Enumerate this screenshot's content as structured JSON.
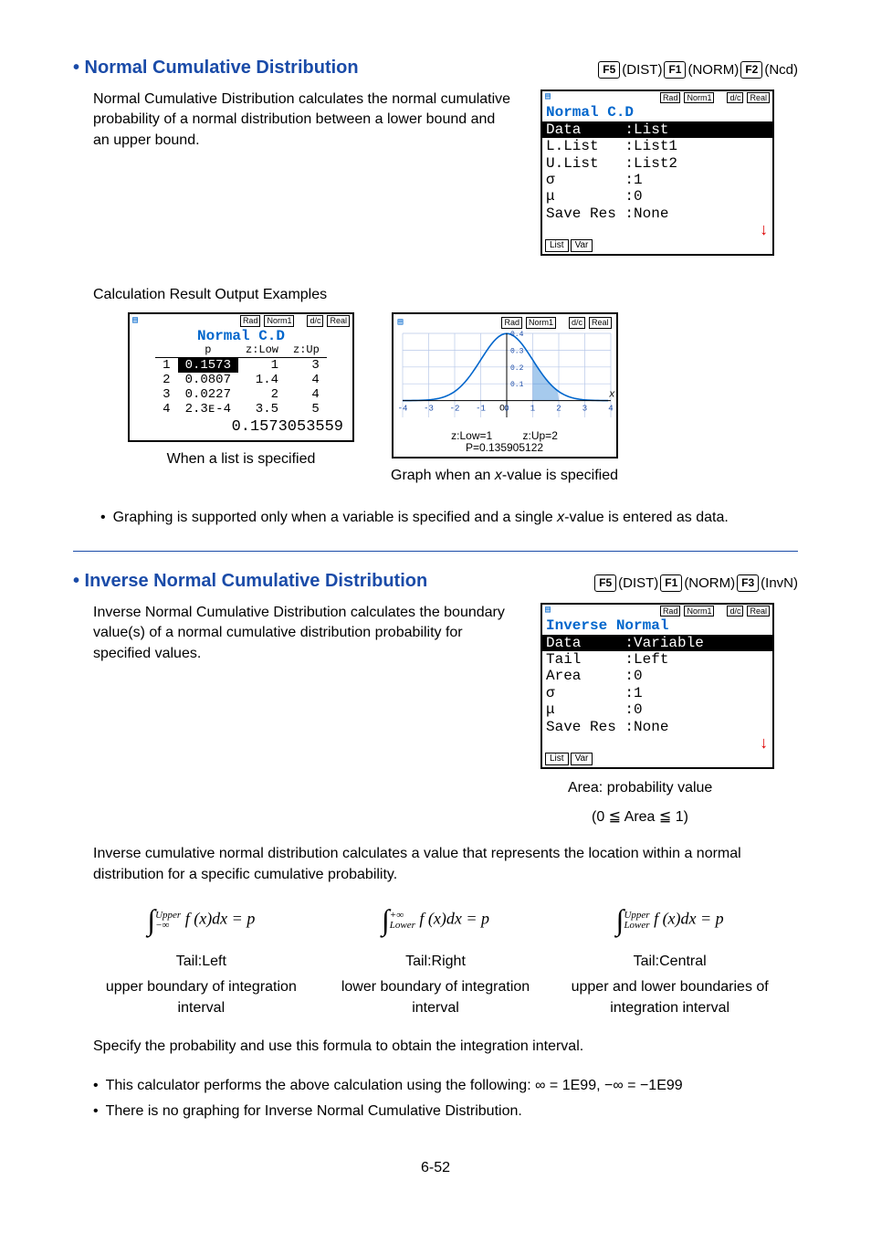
{
  "page_number": "6-52",
  "section1": {
    "title": "• Normal Cumulative Distribution",
    "keyseq": [
      {
        "type": "fkey",
        "label": "F5"
      },
      {
        "type": "text",
        "label": "(DIST)"
      },
      {
        "type": "fkey",
        "label": "F1"
      },
      {
        "type": "text",
        "label": "(NORM)"
      },
      {
        "type": "fkey",
        "label": "F2"
      },
      {
        "type": "text",
        "label": "(Ncd)"
      }
    ],
    "desc": "Normal Cumulative Distribution calculates the normal cumulative probability of a normal distribution between a lower bound and an upper bound.",
    "screen": {
      "badges": [
        "Rad",
        "Norm1",
        "d/c",
        "Real"
      ],
      "title": "Normal C.D",
      "rows": [
        {
          "label": "Data",
          "value": ":List",
          "inv": true
        },
        {
          "label": "L.List",
          "value": ":List1",
          "inv": false
        },
        {
          "label": "U.List",
          "value": ":List2",
          "inv": false
        },
        {
          "label": "σ",
          "value": ":1",
          "inv": false
        },
        {
          "label": "μ",
          "value": ":0",
          "inv": false
        },
        {
          "label": "Save Res",
          "value": ":None",
          "inv": false
        }
      ],
      "bottom": [
        "List",
        "Var"
      ],
      "arrow": "↓"
    },
    "examples_label": "Calculation Result Output Examples",
    "example_left": {
      "badges": [
        "Rad",
        "Norm1",
        "d/c",
        "Real"
      ],
      "title": "Normal C.D",
      "headers": [
        "",
        "p",
        "z:Low",
        "z:Up"
      ],
      "rows": [
        [
          "1",
          "0.1573",
          "1",
          "3"
        ],
        [
          "2",
          "0.0807",
          "1.4",
          "4"
        ],
        [
          "3",
          "0.0227",
          "2",
          "4"
        ],
        [
          "4",
          "2.3ᴇ-4",
          "3.5",
          "5"
        ]
      ],
      "highlight_row": 0,
      "highlight_col": 1,
      "result_line": "0.1573053559",
      "caption": "When a list is specified"
    },
    "example_right": {
      "badges": [
        "Rad",
        "Norm1",
        "d/c",
        "Real"
      ],
      "caption": "Graph when an x-value is specified",
      "graph": {
        "xlim": [
          -4,
          4
        ],
        "ylim": [
          -0.1,
          0.4
        ],
        "xticks": [
          -4,
          -3,
          -2,
          -1,
          0,
          1,
          2,
          3,
          4
        ],
        "yticks": [
          0.1,
          0.2,
          0.3,
          0.4
        ],
        "curve_color": "#0066cc",
        "shade_color": "#0066cc",
        "shade_from": 1,
        "shade_to": 2,
        "labels": [
          "z:Low=1",
          "z:Up=2",
          "P=0.135905122"
        ],
        "grid_color": "#b8c8e8",
        "bg": "#ffffff"
      }
    },
    "note": "Graphing is supported only when a variable is specified and a single x-value is entered as data."
  },
  "section2": {
    "title": "• Inverse Normal Cumulative Distribution",
    "keyseq": [
      {
        "type": "fkey",
        "label": "F5"
      },
      {
        "type": "text",
        "label": "(DIST)"
      },
      {
        "type": "fkey",
        "label": "F1"
      },
      {
        "type": "text",
        "label": "(NORM)"
      },
      {
        "type": "fkey",
        "label": "F3"
      },
      {
        "type": "text",
        "label": "(InvN)"
      }
    ],
    "desc": "Inverse Normal Cumulative Distribution calculates the boundary value(s) of a normal cumulative distribution probability for specified values.",
    "screen": {
      "badges": [
        "Rad",
        "Norm1",
        "d/c",
        "Real"
      ],
      "title": "Inverse Normal",
      "rows": [
        {
          "label": "Data",
          "value": ":Variable",
          "inv": true
        },
        {
          "label": "Tail",
          "value": ":Left",
          "inv": false
        },
        {
          "label": "Area",
          "value": ":0",
          "inv": false
        },
        {
          "label": "σ",
          "value": ":1",
          "inv": false
        },
        {
          "label": "μ",
          "value": ":0",
          "inv": false
        },
        {
          "label": "Save Res",
          "value": ":None",
          "inv": false
        }
      ],
      "bottom": [
        "List",
        "Var"
      ],
      "arrow": "↓"
    },
    "area_note1": "Area: probability value",
    "area_note2": "(0 ≦ Area ≦ 1)",
    "explain": "Inverse cumulative normal distribution calculates a value that represents the location within a normal distribution for a specific cumulative probability.",
    "formulas": [
      {
        "upper": "Upper",
        "lower": "−∞",
        "tail": "Tail:Left",
        "tail_desc": "upper boundary of integration interval"
      },
      {
        "upper": "+∞",
        "lower": "Lower",
        "tail": "Tail:Right",
        "tail_desc": "lower boundary of integration interval"
      },
      {
        "upper": "Upper",
        "lower": "Lower",
        "tail": "Tail:Central",
        "tail_desc": "upper and lower boundaries of integration interval"
      }
    ],
    "formula_body": "f (x)dx = p",
    "specify": "Specify the probability and use this formula to obtain the integration interval.",
    "notes": [
      "This calculator performs the above calculation using the following: ∞ = 1E99, −∞  = −1E99",
      "There is no graphing for Inverse Normal Cumulative Distribution."
    ]
  }
}
